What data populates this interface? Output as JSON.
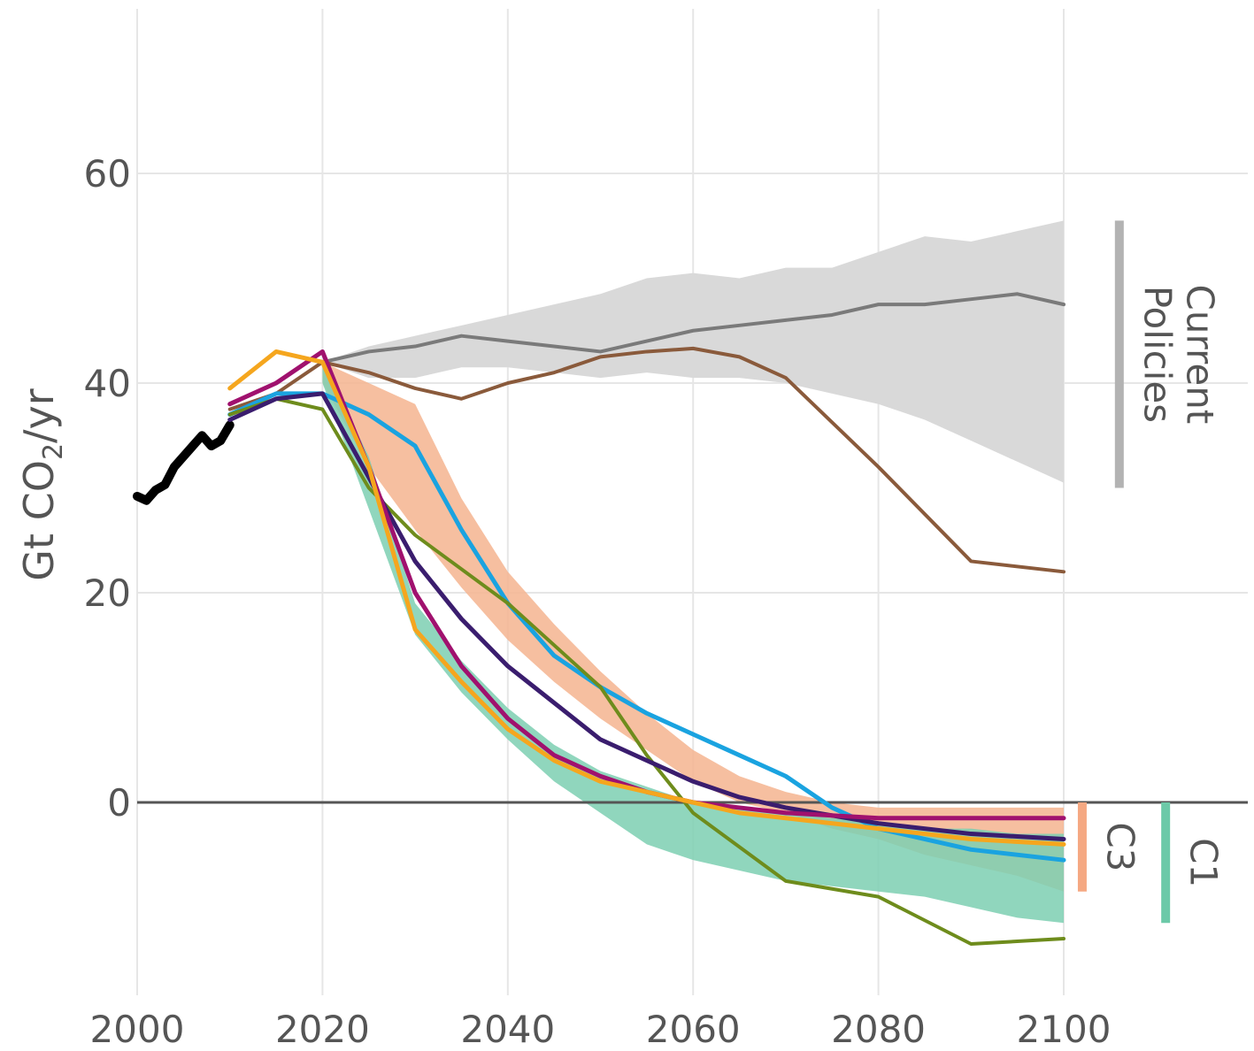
{
  "chart_data": {
    "type": "line",
    "title": "",
    "ylabel": "Gt CO",
    "ylabel_sub": "2",
    "ylabel_unit": "/yr",
    "xlabel": "",
    "xlim": [
      2000,
      2120
    ],
    "ylim": [
      -17,
      76
    ],
    "xticks": [
      "2000",
      "2020",
      "2040",
      "2060",
      "2080",
      "2100"
    ],
    "yticks": [
      "0",
      "20",
      "40",
      "60"
    ],
    "grid": true,
    "zero_line": true,
    "colors": {
      "historical": "#000000",
      "current_policies_band": "#d9d9d9",
      "current_policies_median": "#7a7a7a",
      "c3_band": "#f5b48f",
      "c1_band": "#7ccfb2",
      "current_bracket": "#b3b3b3",
      "c3_bracket": "#f5a882",
      "c1_bracket": "#6cc9a8"
    },
    "brackets": [
      {
        "label_lines": [
          "Current",
          "Policies"
        ],
        "color": "#b3b3b3",
        "y_range": [
          30,
          55.5
        ],
        "x": 2106
      },
      {
        "label_lines": [
          "C3"
        ],
        "color": "#f5a882",
        "y_range": [
          -8.5,
          0
        ],
        "x": 2102
      },
      {
        "label_lines": [
          "C1"
        ],
        "color": "#6cc9a8",
        "y_range": [
          -11.5,
          0
        ],
        "x": 2111
      }
    ],
    "bands": [
      {
        "name": "Current Policies",
        "color": "#d9d9d9",
        "x": [
          2020,
          2025,
          2030,
          2035,
          2040,
          2045,
          2050,
          2055,
          2060,
          2065,
          2070,
          2075,
          2080,
          2085,
          2090,
          2095,
          2100
        ],
        "upper": [
          42,
          43.5,
          44.5,
          45.5,
          46.5,
          47.5,
          48.5,
          50,
          50.5,
          50,
          51,
          51,
          52.5,
          54,
          53.5,
          54.5,
          55.5
        ],
        "lower": [
          42,
          40.5,
          40.5,
          41.5,
          41.5,
          41,
          40.5,
          41,
          40.5,
          40.5,
          40,
          39,
          38,
          36.5,
          34.5,
          32.5,
          30.5
        ]
      },
      {
        "name": "C3",
        "color": "#f5b48f",
        "x": [
          2020,
          2025,
          2030,
          2035,
          2040,
          2045,
          2050,
          2055,
          2060,
          2065,
          2070,
          2075,
          2080,
          2085,
          2090,
          2095,
          2100
        ],
        "upper": [
          42,
          40,
          38,
          29,
          22,
          17,
          12.5,
          8.5,
          5,
          2.5,
          1,
          0,
          -0.5,
          -0.5,
          -0.5,
          -0.5,
          -0.5
        ],
        "lower": [
          40,
          32,
          26,
          20.5,
          15.5,
          11.5,
          8,
          5,
          2,
          0,
          -1,
          -2.5,
          -3.5,
          -5,
          -6,
          -7,
          -8.5
        ]
      },
      {
        "name": "C1",
        "color": "#7ccfb2",
        "x": [
          2020,
          2025,
          2030,
          2035,
          2040,
          2045,
          2050,
          2055,
          2060,
          2065,
          2070,
          2075,
          2080,
          2085,
          2090,
          2095,
          2100
        ],
        "upper": [
          42,
          33,
          19,
          13.5,
          9,
          5.5,
          3,
          1.5,
          0,
          -0.5,
          -1,
          -1.5,
          -2,
          -2.5,
          -2.5,
          -3,
          -3
        ],
        "lower": [
          40,
          28,
          16,
          10.5,
          6,
          2,
          -1,
          -4,
          -5.5,
          -6.5,
          -7.5,
          -8,
          -8.5,
          -9,
          -10,
          -11,
          -11.5
        ]
      }
    ],
    "series": [
      {
        "color": "#000000",
        "width": 10,
        "x": [
          2000,
          2001,
          2002,
          2003,
          2004,
          2005,
          2006,
          2007,
          2008,
          2009,
          2010
        ],
        "y": [
          29.2,
          28.8,
          29.8,
          30.3,
          32,
          33,
          34,
          35,
          34,
          34.5,
          36
        ]
      },
      {
        "color": "#7a7a7a",
        "width": 4,
        "x": [
          2020,
          2025,
          2030,
          2035,
          2040,
          2045,
          2050,
          2055,
          2060,
          2065,
          2070,
          2075,
          2080,
          2085,
          2090,
          2095,
          2100
        ],
        "y": [
          42,
          43,
          43.5,
          44.5,
          44,
          43.5,
          43,
          44,
          45,
          45.5,
          46,
          46.5,
          47.5,
          47.5,
          48,
          48.5,
          47.5
        ]
      },
      {
        "color": "#8a5a3b",
        "width": 4,
        "x": [
          2010,
          2015,
          2020,
          2025,
          2030,
          2035,
          2040,
          2045,
          2050,
          2055,
          2060,
          2065,
          2070,
          2080,
          2090,
          2100
        ],
        "y": [
          37.5,
          39,
          42,
          41,
          39.5,
          38.5,
          40,
          41,
          42.5,
          43,
          43.3,
          42.5,
          40.5,
          32,
          23,
          22
        ]
      },
      {
        "color": "#1aa3e0",
        "width": 5,
        "x": [
          2010,
          2015,
          2020,
          2025,
          2030,
          2035,
          2040,
          2045,
          2050,
          2055,
          2060,
          2065,
          2070,
          2075,
          2080,
          2090,
          2100
        ],
        "y": [
          37,
          39,
          39,
          37,
          34,
          26,
          19,
          14,
          11,
          8.5,
          6.5,
          4.5,
          2.5,
          -0.5,
          -2.5,
          -4.5,
          -5.5
        ]
      },
      {
        "color": "#6e8c1c",
        "width": 4,
        "x": [
          2010,
          2015,
          2020,
          2025,
          2030,
          2040,
          2050,
          2055,
          2060,
          2070,
          2080,
          2090,
          2100
        ],
        "y": [
          37,
          38.5,
          37.5,
          30,
          25.5,
          19,
          11,
          4.5,
          -1,
          -7.5,
          -9,
          -13.5,
          -13
        ]
      },
      {
        "color": "#3a1d6e",
        "width": 5,
        "x": [
          2010,
          2015,
          2020,
          2025,
          2030,
          2035,
          2040,
          2045,
          2050,
          2055,
          2060,
          2065,
          2070,
          2080,
          2090,
          2100
        ],
        "y": [
          36.5,
          38.5,
          39,
          31,
          23,
          17.5,
          13,
          9.5,
          6,
          4,
          2,
          0.5,
          -0.5,
          -2,
          -3,
          -3.5
        ]
      },
      {
        "color": "#a0116e",
        "width": 5,
        "x": [
          2010,
          2015,
          2020,
          2025,
          2030,
          2035,
          2040,
          2045,
          2050,
          2055,
          2060,
          2065,
          2070,
          2080,
          2090,
          2100
        ],
        "y": [
          38,
          40,
          43,
          32,
          20,
          13,
          8,
          4.5,
          2.5,
          1,
          0,
          -0.5,
          -1,
          -1.5,
          -1.5,
          -1.5
        ]
      },
      {
        "color": "#f5a61e",
        "width": 5,
        "x": [
          2010,
          2015,
          2020,
          2025,
          2030,
          2035,
          2040,
          2045,
          2050,
          2055,
          2060,
          2065,
          2070,
          2080,
          2090,
          2100
        ],
        "y": [
          39.5,
          43,
          42,
          32,
          16.5,
          11.5,
          7,
          4,
          2,
          1,
          0,
          -1,
          -1.5,
          -2.5,
          -3.5,
          -4
        ]
      }
    ]
  }
}
